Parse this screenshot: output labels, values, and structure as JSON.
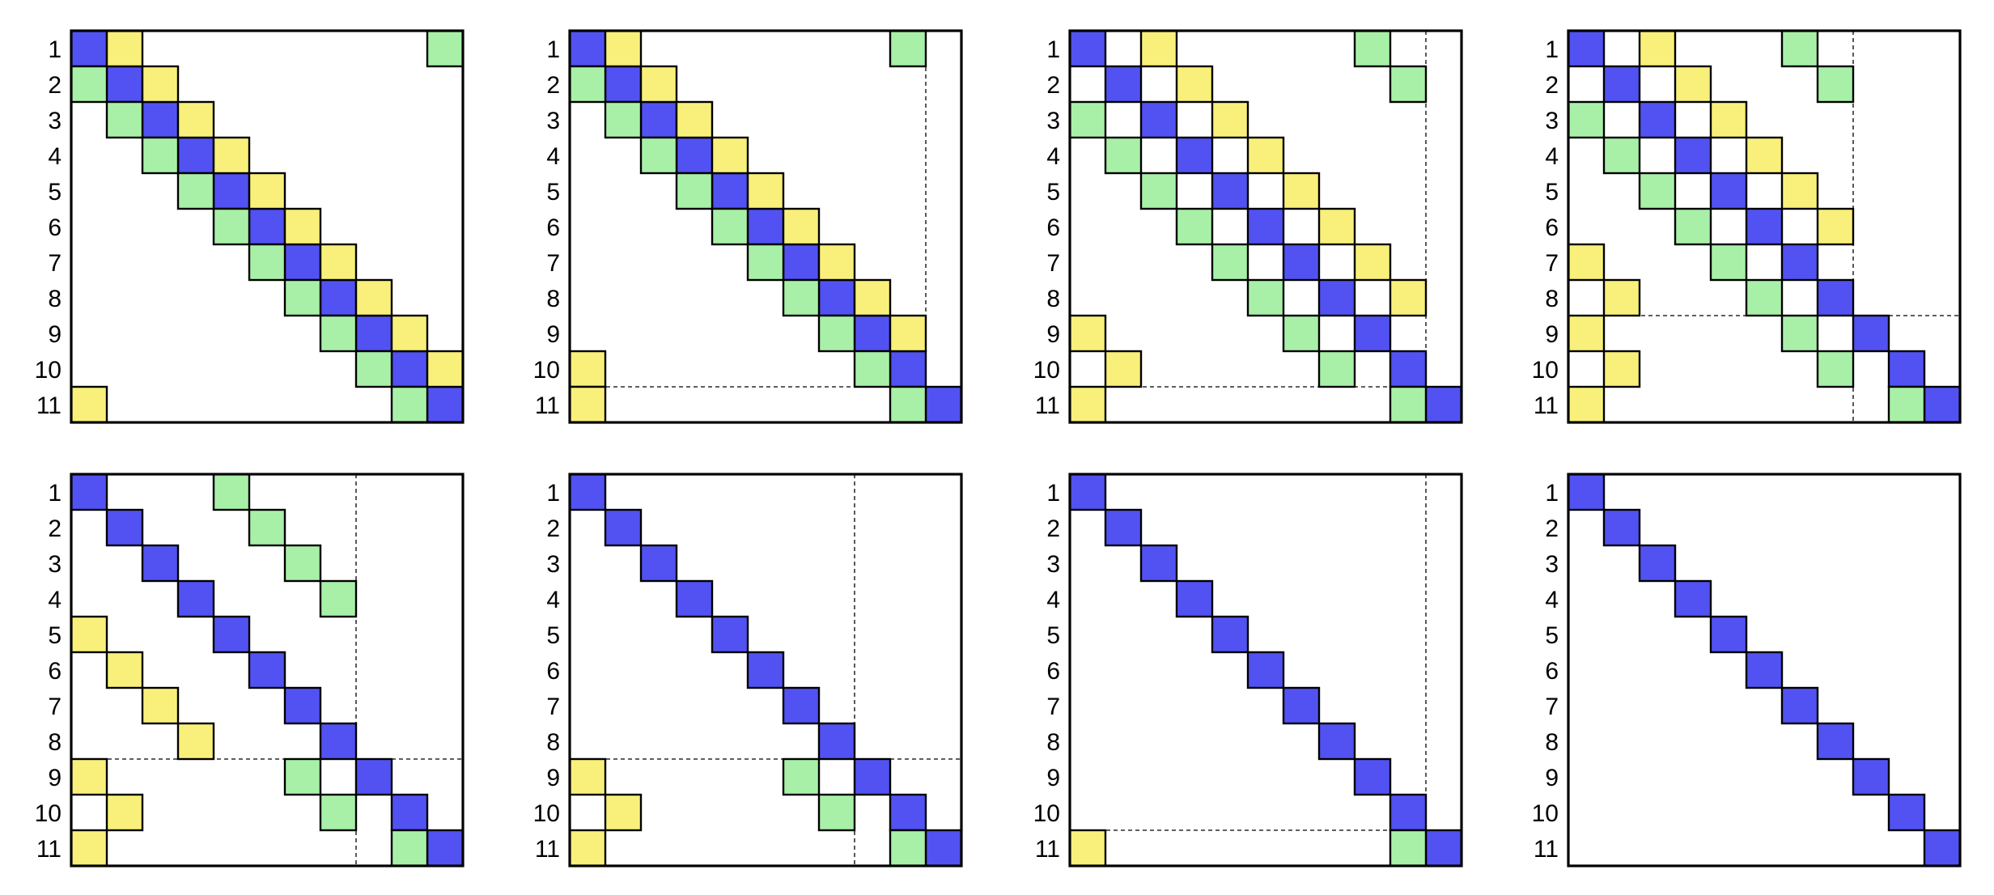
{
  "size": 11,
  "row_labels": [
    "1",
    "2",
    "3",
    "4",
    "5",
    "6",
    "7",
    "8",
    "9",
    "10",
    "11"
  ],
  "colors": {
    "diagonal": "#5252F2",
    "upper": "#F8F07A",
    "lower": "#A8F0A8"
  },
  "panels": [
    {
      "cells": {
        "diagonal": [
          [
            1,
            1
          ],
          [
            2,
            2
          ],
          [
            3,
            3
          ],
          [
            4,
            4
          ],
          [
            5,
            5
          ],
          [
            6,
            6
          ],
          [
            7,
            7
          ],
          [
            8,
            8
          ],
          [
            9,
            9
          ],
          [
            10,
            10
          ],
          [
            11,
            11
          ]
        ],
        "upper": [
          [
            1,
            2
          ],
          [
            2,
            3
          ],
          [
            3,
            4
          ],
          [
            4,
            5
          ],
          [
            5,
            6
          ],
          [
            6,
            7
          ],
          [
            7,
            8
          ],
          [
            8,
            9
          ],
          [
            9,
            10
          ],
          [
            10,
            11
          ],
          [
            11,
            1
          ]
        ],
        "lower": [
          [
            1,
            11
          ],
          [
            2,
            1
          ],
          [
            3,
            2
          ],
          [
            4,
            3
          ],
          [
            5,
            4
          ],
          [
            6,
            5
          ],
          [
            7,
            6
          ],
          [
            8,
            7
          ],
          [
            9,
            8
          ],
          [
            10,
            9
          ],
          [
            11,
            10
          ]
        ]
      },
      "guides": []
    },
    {
      "cells": {
        "diagonal": [
          [
            1,
            1
          ],
          [
            2,
            2
          ],
          [
            3,
            3
          ],
          [
            4,
            4
          ],
          [
            5,
            5
          ],
          [
            6,
            6
          ],
          [
            7,
            7
          ],
          [
            8,
            8
          ],
          [
            9,
            9
          ],
          [
            10,
            10
          ],
          [
            11,
            11
          ]
        ],
        "upper": [
          [
            1,
            2
          ],
          [
            2,
            3
          ],
          [
            3,
            4
          ],
          [
            4,
            5
          ],
          [
            5,
            6
          ],
          [
            6,
            7
          ],
          [
            7,
            8
          ],
          [
            8,
            9
          ],
          [
            9,
            10
          ],
          [
            10,
            1
          ],
          [
            11,
            1
          ]
        ],
        "lower": [
          [
            1,
            10
          ],
          [
            2,
            1
          ],
          [
            3,
            2
          ],
          [
            4,
            3
          ],
          [
            5,
            4
          ],
          [
            6,
            5
          ],
          [
            7,
            6
          ],
          [
            8,
            7
          ],
          [
            9,
            8
          ],
          [
            10,
            9
          ],
          [
            11,
            10
          ]
        ]
      },
      "guides": [
        {
          "orient": "h",
          "after": 10,
          "from": 1,
          "to": 9
        },
        {
          "orient": "v",
          "after": 10,
          "from": 1,
          "to": 9
        }
      ]
    },
    {
      "cells": {
        "diagonal": [
          [
            1,
            1
          ],
          [
            2,
            2
          ],
          [
            3,
            3
          ],
          [
            4,
            4
          ],
          [
            5,
            5
          ],
          [
            6,
            6
          ],
          [
            7,
            7
          ],
          [
            8,
            8
          ],
          [
            9,
            9
          ],
          [
            10,
            10
          ],
          [
            11,
            11
          ]
        ],
        "upper": [
          [
            1,
            3
          ],
          [
            2,
            4
          ],
          [
            3,
            5
          ],
          [
            4,
            6
          ],
          [
            5,
            7
          ],
          [
            6,
            8
          ],
          [
            7,
            9
          ],
          [
            8,
            10
          ],
          [
            9,
            1
          ],
          [
            10,
            2
          ],
          [
            11,
            1
          ]
        ],
        "lower": [
          [
            1,
            9
          ],
          [
            2,
            10
          ],
          [
            3,
            1
          ],
          [
            4,
            2
          ],
          [
            5,
            3
          ],
          [
            6,
            4
          ],
          [
            7,
            5
          ],
          [
            8,
            6
          ],
          [
            9,
            7
          ],
          [
            10,
            8
          ],
          [
            11,
            10
          ]
        ]
      },
      "guides": [
        {
          "orient": "h",
          "after": 10,
          "from": 1,
          "to": 9
        },
        {
          "orient": "v",
          "after": 10,
          "from": 1,
          "to": 9
        }
      ]
    },
    {
      "cells": {
        "diagonal": [
          [
            1,
            1
          ],
          [
            2,
            2
          ],
          [
            3,
            3
          ],
          [
            4,
            4
          ],
          [
            5,
            5
          ],
          [
            6,
            6
          ],
          [
            7,
            7
          ],
          [
            8,
            8
          ],
          [
            9,
            9
          ],
          [
            10,
            10
          ],
          [
            11,
            11
          ]
        ],
        "upper": [
          [
            1,
            3
          ],
          [
            2,
            4
          ],
          [
            3,
            5
          ],
          [
            4,
            6
          ],
          [
            5,
            7
          ],
          [
            6,
            8
          ],
          [
            7,
            1
          ],
          [
            8,
            2
          ],
          [
            9,
            1
          ],
          [
            10,
            2
          ],
          [
            11,
            1
          ]
        ],
        "lower": [
          [
            1,
            7
          ],
          [
            2,
            8
          ],
          [
            3,
            1
          ],
          [
            4,
            2
          ],
          [
            5,
            3
          ],
          [
            6,
            4
          ],
          [
            7,
            5
          ],
          [
            8,
            6
          ],
          [
            9,
            7
          ],
          [
            10,
            8
          ],
          [
            11,
            10
          ]
        ]
      },
      "guides": [
        {
          "orient": "h",
          "after": 8,
          "from": 1,
          "to": 11
        },
        {
          "orient": "v",
          "after": 8,
          "from": 1,
          "to": 11
        }
      ]
    },
    {
      "cells": {
        "diagonal": [
          [
            1,
            1
          ],
          [
            2,
            2
          ],
          [
            3,
            3
          ],
          [
            4,
            4
          ],
          [
            5,
            5
          ],
          [
            6,
            6
          ],
          [
            7,
            7
          ],
          [
            8,
            8
          ],
          [
            9,
            9
          ],
          [
            10,
            10
          ],
          [
            11,
            11
          ]
        ],
        "upper": [
          [
            5,
            1
          ],
          [
            6,
            2
          ],
          [
            7,
            3
          ],
          [
            8,
            4
          ],
          [
            9,
            1
          ],
          [
            10,
            2
          ],
          [
            11,
            1
          ]
        ],
        "lower": [
          [
            1,
            5
          ],
          [
            2,
            6
          ],
          [
            3,
            7
          ],
          [
            4,
            8
          ],
          [
            9,
            7
          ],
          [
            10,
            8
          ],
          [
            11,
            10
          ]
        ]
      },
      "guides": [
        {
          "orient": "h",
          "after": 8,
          "from": 1,
          "to": 11
        },
        {
          "orient": "v",
          "after": 8,
          "from": 1,
          "to": 11
        }
      ]
    },
    {
      "cells": {
        "diagonal": [
          [
            1,
            1
          ],
          [
            2,
            2
          ],
          [
            3,
            3
          ],
          [
            4,
            4
          ],
          [
            5,
            5
          ],
          [
            6,
            6
          ],
          [
            7,
            7
          ],
          [
            8,
            8
          ],
          [
            9,
            9
          ],
          [
            10,
            10
          ],
          [
            11,
            11
          ]
        ],
        "upper": [
          [
            9,
            1
          ],
          [
            10,
            2
          ],
          [
            11,
            1
          ]
        ],
        "lower": [
          [
            9,
            7
          ],
          [
            10,
            8
          ],
          [
            11,
            10
          ]
        ]
      },
      "guides": [
        {
          "orient": "h",
          "after": 8,
          "from": 1,
          "to": 11
        },
        {
          "orient": "v",
          "after": 8,
          "from": 1,
          "to": 11
        }
      ]
    },
    {
      "cells": {
        "diagonal": [
          [
            1,
            1
          ],
          [
            2,
            2
          ],
          [
            3,
            3
          ],
          [
            4,
            4
          ],
          [
            5,
            5
          ],
          [
            6,
            6
          ],
          [
            7,
            7
          ],
          [
            8,
            8
          ],
          [
            9,
            9
          ],
          [
            10,
            10
          ],
          [
            11,
            11
          ]
        ],
        "upper": [
          [
            11,
            1
          ]
        ],
        "lower": [
          [
            11,
            10
          ]
        ]
      },
      "guides": [
        {
          "orient": "h",
          "after": 10,
          "from": 1,
          "to": 9
        },
        {
          "orient": "v",
          "after": 10,
          "from": 1,
          "to": 9
        }
      ]
    },
    {
      "cells": {
        "diagonal": [
          [
            1,
            1
          ],
          [
            2,
            2
          ],
          [
            3,
            3
          ],
          [
            4,
            4
          ],
          [
            5,
            5
          ],
          [
            6,
            6
          ],
          [
            7,
            7
          ],
          [
            8,
            8
          ],
          [
            9,
            9
          ],
          [
            10,
            10
          ],
          [
            11,
            11
          ]
        ],
        "upper": [],
        "lower": []
      },
      "guides": []
    }
  ]
}
